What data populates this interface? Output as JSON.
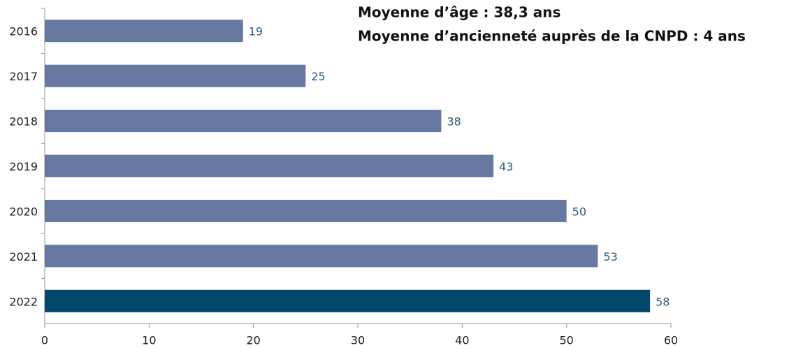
{
  "chart_data": {
    "type": "barh",
    "annotations": [
      "Moyenne d’âge : 38,3 ans",
      "Moyenne d’ancienneté auprès de la CNPD : 4 ans"
    ],
    "categories": [
      "2016",
      "2017",
      "2018",
      "2019",
      "2020",
      "2021",
      "2022"
    ],
    "values": [
      19,
      25,
      38,
      43,
      50,
      53,
      58
    ],
    "colors": [
      "#6779a0",
      "#6779a0",
      "#6779a0",
      "#6779a0",
      "#6779a0",
      "#6779a0",
      "#00476b"
    ],
    "xlim": [
      0,
      60
    ],
    "xticks": [
      0,
      10,
      20,
      30,
      40,
      50,
      60
    ],
    "grid": false
  }
}
